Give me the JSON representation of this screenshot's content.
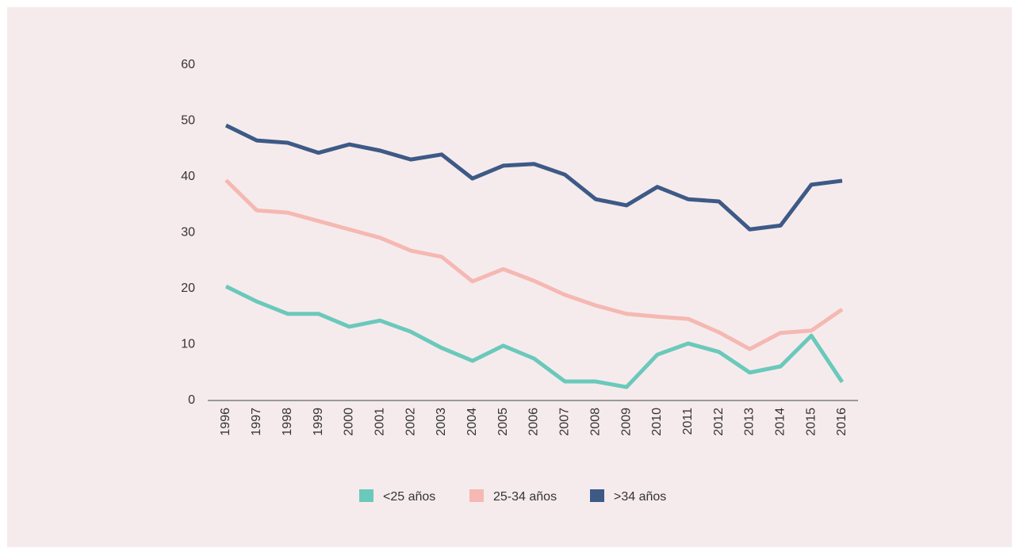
{
  "chart_data": {
    "type": "line",
    "categories": [
      "1996",
      "1997",
      "1998",
      "1999",
      "2000",
      "2001",
      "2002",
      "2003",
      "2004",
      "2005",
      "2006",
      "2007",
      "2008",
      "2009",
      "2010",
      "2011",
      "2012",
      "2013",
      "2014",
      "2015",
      "2016"
    ],
    "series": [
      {
        "name": "<25 años",
        "color": "#6ac9bb",
        "values": [
          20.4,
          17.7,
          15.5,
          15.5,
          13.2,
          14.3,
          12.3,
          9.4,
          7.1,
          9.8,
          7.5,
          3.4,
          3.4,
          2.4,
          8.2,
          10.2,
          8.7,
          5.0,
          6.1,
          11.6,
          3.3
        ]
      },
      {
        "name": "25-34 años",
        "color": "#f5b8b2",
        "values": [
          39.4,
          34.0,
          33.6,
          32.1,
          30.6,
          29.1,
          26.8,
          25.7,
          21.3,
          23.5,
          21.4,
          18.9,
          17.0,
          15.5,
          15.0,
          14.6,
          12.2,
          9.2,
          12.1,
          12.5,
          16.3
        ]
      },
      {
        "name": ">34 años",
        "color": "#3d5a87",
        "values": [
          49.2,
          46.5,
          46.1,
          44.3,
          45.8,
          44.7,
          43.1,
          44.0,
          39.7,
          42.0,
          42.3,
          40.4,
          36.0,
          34.9,
          38.2,
          36.0,
          35.6,
          30.6,
          31.3,
          38.6,
          39.3
        ]
      }
    ],
    "ylim": [
      0,
      60
    ],
    "yticks": [
      0,
      10,
      20,
      30,
      40,
      50,
      60
    ],
    "grid": false
  }
}
